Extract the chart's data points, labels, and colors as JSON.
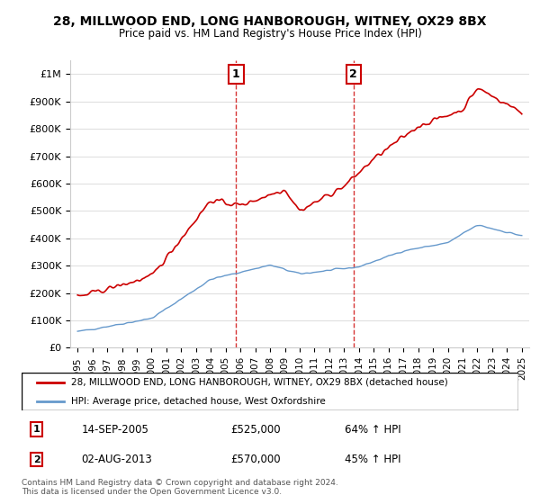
{
  "title": "28, MILLWOOD END, LONG HANBOROUGH, WITNEY, OX29 8BX",
  "subtitle": "Price paid vs. HM Land Registry's House Price Index (HPI)",
  "legend_line1": "28, MILLWOOD END, LONG HANBOROUGH, WITNEY, OX29 8BX (detached house)",
  "legend_line2": "HPI: Average price, detached house, West Oxfordshire",
  "red_color": "#cc0000",
  "blue_color": "#6699cc",
  "marker1_date_idx": 41,
  "marker1_label": "1",
  "marker1_date_str": "14-SEP-2005",
  "marker1_price": "£525,000",
  "marker1_hpi": "64% ↑ HPI",
  "marker2_date_idx": 113,
  "marker2_label": "2",
  "marker2_date_str": "02-AUG-2013",
  "marker2_price": "£570,000",
  "marker2_hpi": "45% ↑ HPI",
  "footer": "Contains HM Land Registry data © Crown copyright and database right 2024.\nThis data is licensed under the Open Government Licence v3.0.",
  "ylim": [
    0,
    1050000
  ],
  "yticks": [
    0,
    100000,
    200000,
    300000,
    400000,
    500000,
    600000,
    700000,
    800000,
    900000,
    1000000
  ],
  "ytick_labels": [
    "£0",
    "£100K",
    "£200K",
    "£300K",
    "£400K",
    "£500K",
    "£600K",
    "£700K",
    "£800K",
    "£900K",
    "£1M"
  ],
  "background_color": "#f0f4f8",
  "plot_bg_color": "#ffffff"
}
